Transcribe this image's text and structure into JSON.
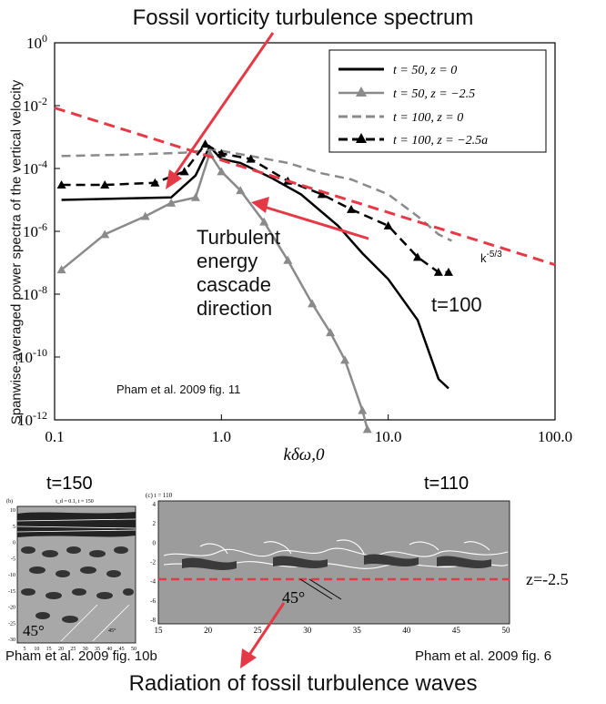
{
  "header": {
    "title": "Fossil vorticity turbulence spectrum"
  },
  "footer": {
    "title": "Radiation of fossil turbulence waves"
  },
  "chart_data": {
    "type": "line",
    "xscale": "log",
    "yscale": "log",
    "xlim": [
      0.1,
      100.0
    ],
    "ylim": [
      1e-12,
      1.0
    ],
    "xlabel": "kδω,0",
    "ylabel": "Spanwise-averaged power spectra of the vertical velocity",
    "x_tick_labels": [
      "0.1",
      "1.0",
      "10.0",
      "100.0"
    ],
    "y_tick_labels": [
      {
        "base": "10",
        "exp": "0"
      },
      {
        "base": "10",
        "exp": "-2"
      },
      {
        "base": "10",
        "exp": "-4"
      },
      {
        "base": "10",
        "exp": "-6"
      },
      {
        "base": "10",
        "exp": "-8"
      },
      {
        "base": "10",
        "exp": "-10"
      },
      {
        "base": "10",
        "exp": "-12"
      }
    ],
    "series": [
      {
        "name": "t = 50, z = 0",
        "color": "#000000",
        "style": "solid",
        "marker": "none",
        "x": [
          0.11,
          0.5,
          0.7,
          0.85,
          1.0,
          1.3,
          2.0,
          3.0,
          5.0,
          7.0,
          10.0,
          15.0,
          20.0,
          23.0
        ],
        "y": [
          1e-05,
          1.2e-05,
          6e-05,
          0.0005,
          0.0002,
          0.00015,
          5e-05,
          1.5e-05,
          1.5e-06,
          2e-07,
          3e-08,
          1.5e-09,
          2e-11,
          1e-11
        ]
      },
      {
        "name": "t = 50, z = −2.5",
        "color": "#8a8a8a",
        "style": "solid",
        "marker": "triangle",
        "x": [
          0.11,
          0.2,
          0.35,
          0.5,
          0.7,
          0.85,
          1.0,
          1.3,
          1.8,
          2.5,
          3.5,
          4.5,
          5.5,
          7.0,
          7.5
        ],
        "y": [
          6e-08,
          8e-07,
          3e-06,
          8e-06,
          1.2e-05,
          0.0003,
          8e-05,
          2e-05,
          2e-06,
          1.2e-07,
          5e-09,
          6e-10,
          8e-11,
          2e-12,
          5e-13
        ]
      },
      {
        "name": "t = 100, z = 0",
        "color": "#8a8a8a",
        "style": "dashed",
        "marker": "none",
        "x": [
          0.11,
          0.3,
          0.6,
          0.9,
          1.5,
          2.5,
          4.0,
          6.0,
          10.0,
          15.0,
          20.0,
          24.0
        ],
        "y": [
          0.00025,
          0.00028,
          0.00032,
          0.0004,
          0.00025,
          0.00015,
          7e-05,
          4.5e-05,
          1.5e-05,
          3e-06,
          8e-07,
          5e-07
        ]
      },
      {
        "name": "t = 100, z = −2.5a",
        "color": "#000000",
        "style": "dashed",
        "marker": "triangle",
        "x": [
          0.11,
          0.2,
          0.4,
          0.6,
          0.8,
          1.0,
          1.5,
          2.5,
          4.0,
          6.0,
          10.0,
          15.0,
          20.0,
          23.0
        ],
        "y": [
          3e-05,
          3e-05,
          3.5e-05,
          8e-05,
          0.0006,
          0.0003,
          0.0002,
          4e-05,
          1.5e-05,
          5e-06,
          1.5e-06,
          1.5e-07,
          5e-08,
          5e-08
        ]
      }
    ],
    "reference_line": {
      "label_base": "k",
      "label_exp": "-5/3",
      "x": [
        0.1,
        100.0
      ],
      "y": [
        0.0085,
        8.66e-08
      ],
      "color": "#e63946"
    },
    "annotations": [
      {
        "text_lines": [
          "Turbulent",
          "energy",
          "cascade",
          "direction"
        ]
      },
      {
        "text": "t=100"
      },
      {
        "text": "Pham et al. 2009 fig. 11"
      }
    ]
  },
  "panels": {
    "left": {
      "title": "t=150",
      "label_b": "(b)",
      "subtitle": "t_d = 0.1, t = 150",
      "angle_label": "45°",
      "angle_label_small": "45°",
      "caption": "Pham et al. 2009 fig. 10b",
      "y_ticks": [
        "10",
        "5",
        "0",
        "-5",
        "-10",
        "-15",
        "-20",
        "-25",
        "-30"
      ],
      "x_ticks": [
        "5",
        "10",
        "15",
        "20",
        "25",
        "30",
        "35",
        "40",
        "45",
        "50"
      ]
    },
    "right": {
      "title": "t=110",
      "label_c": "(c)  t = 110",
      "angle_label": "45°",
      "z_label": "z=-2.5",
      "caption": "Pham et al. 2009 fig. 6",
      "y_ticks": [
        "4",
        "2",
        "0",
        "-2",
        "-4",
        "-6",
        "-8"
      ],
      "x_ticks": [
        "15",
        "20",
        "25",
        "30",
        "35",
        "40",
        "45",
        "50"
      ]
    }
  },
  "colors": {
    "accent_red": "#e63946",
    "panel_gray": "#9c9c9c"
  }
}
